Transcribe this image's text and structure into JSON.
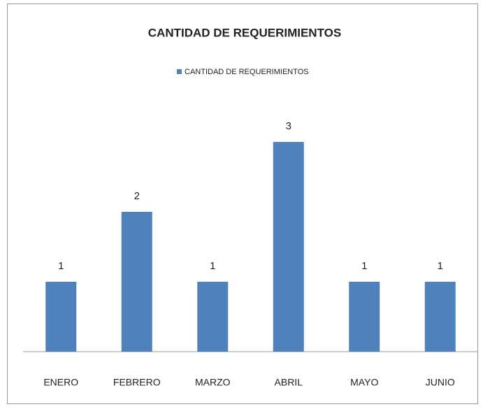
{
  "chart_data": {
    "type": "bar",
    "title": "CANTIDAD DE REQUERIMIENTOS",
    "categories": [
      "ENERO",
      "FEBRERO",
      "MARZO",
      "ABRIL",
      "MAYO",
      "JUNIO"
    ],
    "series": [
      {
        "name": "CANTIDAD DE REQUERIMIENTOS",
        "color": "#4f81bd",
        "values": [
          1,
          2,
          1,
          3,
          1,
          1
        ]
      }
    ],
    "ylim": [
      0,
      3.5
    ],
    "legend": "top"
  }
}
